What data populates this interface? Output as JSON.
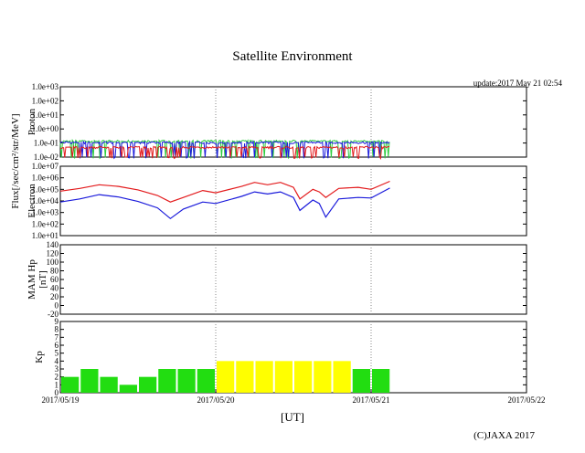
{
  "title": "Satellite Environment",
  "update": "update:2017 May 21 02:54",
  "copyright": "(C)JAXA 2017",
  "x_axis_label": "[UT]",
  "x_ticks": [
    "2017/05/19",
    "2017/05/20",
    "2017/05/21",
    "2017/05/22"
  ],
  "chart_data": [
    {
      "type": "line",
      "name": "proton",
      "ylabel": "Proton",
      "shared_ylabel": "Flux[/sec/cm²/str/MeV]",
      "yscale": "log",
      "ylim": [
        0.01,
        1000
      ],
      "yticks": [
        "1.0e-02",
        "1.0e-01",
        "1.0e+00",
        "1.0e+01",
        "1.0e+02",
        "1.0e+03"
      ],
      "xlim_days": [
        "2017/05/19",
        "2017/05/22"
      ],
      "data_end": "2017/05/21 02:54",
      "series": [
        {
          "color": "#2ecc40",
          "level": 0.14
        },
        {
          "color": "#1a1adb",
          "level": 0.11
        },
        {
          "color": "#e31a1c",
          "level": 0.05
        }
      ]
    },
    {
      "type": "line",
      "name": "electron",
      "ylabel": "Electron",
      "yscale": "log",
      "ylim": [
        10,
        10000000
      ],
      "yticks": [
        "1.0e+01",
        "1.0e+02",
        "1.0e+03",
        "1.0e+04",
        "1.0e+05",
        "1.0e+06",
        "1.0e+07"
      ],
      "series": [
        {
          "color": "#e31a1c",
          "points": [
            [
              "05/19 00:00",
              70000
            ],
            [
              "05/19 03:00",
              120000
            ],
            [
              "05/19 06:00",
              250000
            ],
            [
              "05/19 09:00",
              180000
            ],
            [
              "05/19 12:00",
              90000
            ],
            [
              "05/19 15:00",
              30000
            ],
            [
              "05/19 17:00",
              8000
            ],
            [
              "05/19 19:00",
              20000
            ],
            [
              "05/19 22:00",
              80000
            ],
            [
              "05/20 00:00",
              50000
            ],
            [
              "05/20 04:00",
              180000
            ],
            [
              "05/20 06:00",
              400000
            ],
            [
              "05/20 08:00",
              250000
            ],
            [
              "05/20 10:00",
              400000
            ],
            [
              "05/20 12:00",
              150000
            ],
            [
              "05/20 13:00",
              15000
            ],
            [
              "05/20 15:00",
              100000
            ],
            [
              "05/20 16:00",
              60000
            ],
            [
              "05/20 17:00",
              20000
            ],
            [
              "05/20 19:00",
              120000
            ],
            [
              "05/20 22:00",
              150000
            ],
            [
              "05/21 00:00",
              100000
            ],
            [
              "05/21 02:54",
              500000
            ]
          ]
        },
        {
          "color": "#1a1adb",
          "points": [
            [
              "05/19 00:00",
              8000
            ],
            [
              "05/19 03:00",
              15000
            ],
            [
              "05/19 06:00",
              35000
            ],
            [
              "05/19 09:00",
              22000
            ],
            [
              "05/19 12:00",
              9000
            ],
            [
              "05/19 15:00",
              2500
            ],
            [
              "05/19 17:00",
              300
            ],
            [
              "05/19 19:00",
              2000
            ],
            [
              "05/19 22:00",
              8000
            ],
            [
              "05/20 00:00",
              6000
            ],
            [
              "05/20 04:00",
              25000
            ],
            [
              "05/20 06:00",
              60000
            ],
            [
              "05/20 08:00",
              40000
            ],
            [
              "05/20 10:00",
              60000
            ],
            [
              "05/20 12:00",
              20000
            ],
            [
              "05/20 13:00",
              1500
            ],
            [
              "05/20 15:00",
              12000
            ],
            [
              "05/20 16:00",
              6000
            ],
            [
              "05/20 17:00",
              400
            ],
            [
              "05/20 19:00",
              15000
            ],
            [
              "05/20 22:00",
              20000
            ],
            [
              "05/21 00:00",
              18000
            ],
            [
              "05/21 02:54",
              130000
            ]
          ]
        }
      ]
    },
    {
      "type": "line",
      "name": "mam-hp",
      "ylabel": "MAM Hp",
      "ylabel2": "[nT]",
      "ylim": [
        -20,
        140
      ],
      "yticks": [
        "-20",
        "0",
        "20",
        "40",
        "60",
        "80",
        "100",
        "120",
        "140"
      ],
      "series": []
    },
    {
      "type": "bar",
      "name": "kp",
      "ylabel": "Kp",
      "ylim": [
        0,
        9
      ],
      "yticks": [
        "0",
        "1",
        "2",
        "3",
        "4",
        "5",
        "6",
        "7",
        "8",
        "9"
      ],
      "bar_interval_hours": 3,
      "values": [
        2,
        3,
        2,
        1,
        2,
        3,
        3,
        3,
        4,
        4,
        4,
        4,
        4,
        4,
        4,
        3,
        3
      ],
      "colors": {
        "low": "#22dd11",
        "high": "#ffff00"
      },
      "threshold": 4
    }
  ]
}
